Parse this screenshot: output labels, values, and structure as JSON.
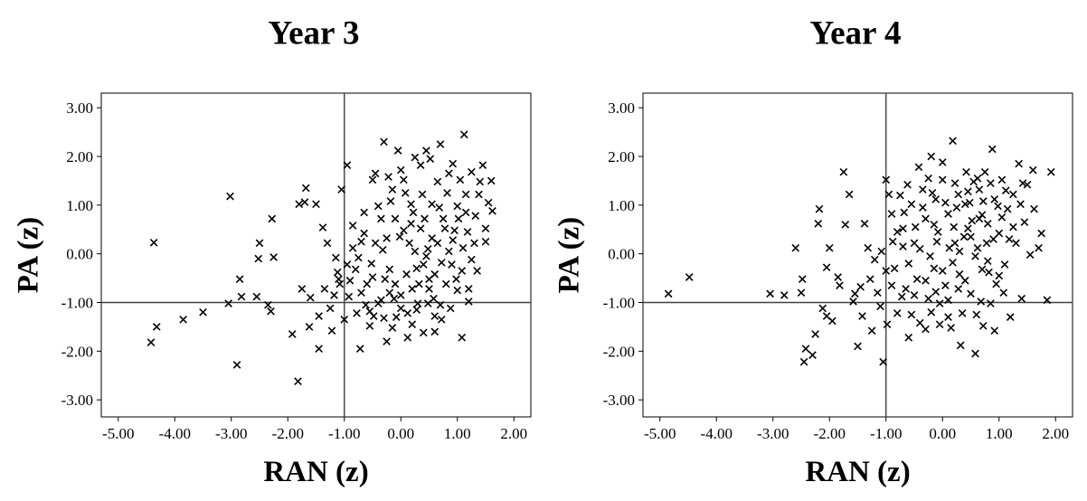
{
  "chart_data": [
    {
      "type": "scatter",
      "title": "Year 3",
      "xlabel": "RAN (z)",
      "ylabel": "PA (z)",
      "xlim": [
        -5.3,
        2.3
      ],
      "ylim": [
        -3.35,
        3.3
      ],
      "xticks": [
        -5,
        -4,
        -3,
        -2,
        -1,
        0,
        1,
        2
      ],
      "yticks": [
        3,
        2,
        1,
        0,
        -1,
        -2,
        -3
      ],
      "xtick_labels": [
        "-5.00",
        "-4.00",
        "-3.00",
        "-2.00",
        "-1.00",
        "0.00",
        "1.00",
        "2.00"
      ],
      "ytick_labels": [
        "3.00",
        "2.00",
        "1.00",
        "0.00",
        "-1.00",
        "-2.00",
        "-3.00"
      ],
      "reference_lines": {
        "x": -1,
        "y": -1
      },
      "marker": "x",
      "grid": false,
      "points": [
        [
          -4.42,
          -1.82
        ],
        [
          -4.37,
          0.23
        ],
        [
          -4.32,
          -1.5
        ],
        [
          -3.85,
          -1.35
        ],
        [
          -3.5,
          -1.2
        ],
        [
          -3.02,
          1.18
        ],
        [
          -3.05,
          -1.02
        ],
        [
          -2.85,
          -0.52
        ],
        [
          -2.82,
          -0.88
        ],
        [
          -2.9,
          -2.28
        ],
        [
          -2.5,
          0.22
        ],
        [
          -2.55,
          -0.88
        ],
        [
          -2.52,
          -0.1
        ],
        [
          -2.28,
          0.72
        ],
        [
          -2.35,
          -1.05
        ],
        [
          -2.3,
          -1.18
        ],
        [
          -2.25,
          -0.07
        ],
        [
          -1.92,
          -1.65
        ],
        [
          -1.8,
          1.02
        ],
        [
          -1.68,
          1.35
        ],
        [
          -1.7,
          1.06
        ],
        [
          -1.75,
          -0.72
        ],
        [
          -1.6,
          -0.9
        ],
        [
          -1.5,
          1.02
        ],
        [
          -1.45,
          -1.28
        ],
        [
          -1.38,
          0.54
        ],
        [
          -1.35,
          -0.72
        ],
        [
          -1.3,
          0.22
        ],
        [
          -1.25,
          -1.12
        ],
        [
          -1.18,
          -0.85
        ],
        [
          -1.12,
          -0.38
        ],
        [
          -1.05,
          1.32
        ],
        [
          -1.0,
          -1.35
        ],
        [
          -1.45,
          -1.95
        ],
        [
          -1.82,
          -2.62
        ],
        [
          -1.22,
          -1.58
        ],
        [
          -1.62,
          -1.5
        ],
        [
          -1.15,
          -0.08
        ],
        [
          -1.08,
          -0.62
        ],
        [
          -0.95,
          1.82
        ],
        [
          -0.92,
          -0.88
        ],
        [
          -0.85,
          0.58
        ],
        [
          -0.8,
          -0.32
        ],
        [
          -0.78,
          -1.22
        ],
        [
          -0.72,
          -1.95
        ],
        [
          -0.65,
          0.85
        ],
        [
          -0.55,
          -1.48
        ],
        [
          -0.3,
          2.3
        ],
        [
          -0.5,
          1.52
        ],
        [
          -0.45,
          1.65
        ],
        [
          -0.22,
          1.58
        ],
        [
          -0.15,
          1.32
        ],
        [
          -0.35,
          0.72
        ],
        [
          -0.28,
          -0.52
        ],
        [
          -0.12,
          -0.92
        ],
        [
          -0.05,
          2.12
        ],
        [
          0.0,
          1.72
        ],
        [
          0.05,
          1.52
        ],
        [
          0.12,
          -1.22
        ],
        [
          0.18,
          1.02
        ],
        [
          0.22,
          0.85
        ],
        [
          0.25,
          1.98
        ],
        [
          0.32,
          -0.62
        ],
        [
          0.35,
          1.82
        ],
        [
          0.45,
          2.12
        ],
        [
          0.5,
          -0.52
        ],
        [
          0.52,
          1.95
        ],
        [
          0.58,
          -0.92
        ],
        [
          0.65,
          1.48
        ],
        [
          0.7,
          2.25
        ],
        [
          0.72,
          -1.35
        ],
        [
          0.78,
          0.52
        ],
        [
          0.85,
          1.65
        ],
        [
          0.92,
          1.85
        ],
        [
          0.98,
          -0.52
        ],
        [
          1.0,
          0.98
        ],
        [
          1.05,
          1.52
        ],
        [
          1.08,
          -1.72
        ],
        [
          1.12,
          2.45
        ],
        [
          1.15,
          1.22
        ],
        [
          1.2,
          -0.72
        ],
        [
          1.25,
          1.68
        ],
        [
          1.3,
          0.22
        ],
        [
          1.35,
          -0.35
        ],
        [
          1.4,
          1.48
        ],
        [
          1.45,
          1.82
        ],
        [
          1.5,
          0.52
        ],
        [
          1.55,
          1.05
        ],
        [
          1.6,
          1.5
        ],
        [
          1.62,
          0.88
        ],
        [
          -0.2,
          -0.32
        ],
        [
          -0.1,
          -0.62
        ],
        [
          0.0,
          -0.85
        ],
        [
          0.1,
          -0.42
        ],
        [
          0.2,
          -0.72
        ],
        [
          0.3,
          -1.02
        ],
        [
          0.4,
          -0.22
        ],
        [
          0.5,
          -0.72
        ],
        [
          0.6,
          -0.42
        ],
        [
          0.7,
          -1.05
        ],
        [
          0.8,
          -0.62
        ],
        [
          0.9,
          -0.22
        ],
        [
          1.0,
          -0.75
        ],
        [
          -0.4,
          -1.02
        ],
        [
          -0.3,
          -1.32
        ],
        [
          -0.2,
          -0.8
        ],
        [
          0.0,
          -1.12
        ],
        [
          0.2,
          -1.45
        ],
        [
          0.4,
          -1.62
        ],
        [
          0.6,
          -1.28
        ],
        [
          -0.6,
          -0.62
        ],
        [
          -0.7,
          -0.8
        ],
        [
          -0.5,
          -0.48
        ],
        [
          -0.35,
          -0.95
        ],
        [
          0.15,
          0.22
        ],
        [
          0.35,
          0.52
        ],
        [
          0.55,
          0.32
        ],
        [
          0.75,
          0.72
        ],
        [
          0.95,
          0.48
        ],
        [
          1.1,
          0.12
        ],
        [
          0.05,
          0.48
        ],
        [
          0.25,
          0.05
        ],
        [
          0.45,
          -0.05
        ],
        [
          0.65,
          0.22
        ],
        [
          0.85,
          0.05
        ],
        [
          -0.1,
          0.72
        ],
        [
          -0.25,
          0.32
        ],
        [
          -0.45,
          0.22
        ],
        [
          -0.65,
          0.42
        ],
        [
          -0.85,
          0.12
        ],
        [
          -0.15,
          -1.52
        ],
        [
          0.12,
          -1.72
        ],
        [
          -0.55,
          -1.18
        ],
        [
          -0.9,
          -0.55
        ],
        [
          -0.25,
          -1.8
        ],
        [
          0.6,
          -1.6
        ],
        [
          1.2,
          -0.98
        ],
        [
          1.32,
          0.78
        ],
        [
          1.02,
          0.72
        ],
        [
          0.68,
          0.95
        ],
        [
          0.38,
          1.22
        ],
        [
          0.08,
          1.25
        ],
        [
          -0.18,
          1.08
        ],
        [
          -0.4,
          0.98
        ],
        [
          -0.7,
          0.25
        ],
        [
          -0.95,
          -0.22
        ],
        [
          -1.1,
          -0.52
        ],
        [
          0.28,
          -0.3
        ],
        [
          0.48,
          0.1
        ],
        [
          0.72,
          -0.18
        ],
        [
          0.92,
          0.28
        ],
        [
          1.18,
          0.45
        ],
        [
          1.38,
          1.22
        ],
        [
          1.5,
          0.25
        ],
        [
          1.25,
          -0.12
        ],
        [
          0.82,
          1.25
        ],
        [
          0.55,
          1.02
        ],
        [
          0.42,
          0.72
        ],
        [
          0.18,
          0.62
        ],
        [
          -0.02,
          0.35
        ],
        [
          -0.32,
          0.08
        ],
        [
          -0.52,
          -0.2
        ],
        [
          -0.75,
          -0.08
        ],
        [
          -0.62,
          -1.05
        ],
        [
          -0.48,
          -1.28
        ],
        [
          -0.08,
          -1.3
        ],
        [
          0.28,
          -1.15
        ],
        [
          0.48,
          -1.02
        ],
        [
          0.88,
          -1.12
        ],
        [
          1.08,
          -0.35
        ],
        [
          1.15,
          0.85
        ]
      ]
    },
    {
      "type": "scatter",
      "title": "Year 4",
      "xlabel": "RAN (z)",
      "ylabel": "PA (z)",
      "xlim": [
        -5.3,
        2.3
      ],
      "ylim": [
        -3.35,
        3.3
      ],
      "xticks": [
        -5,
        -4,
        -3,
        -2,
        -1,
        0,
        1,
        2
      ],
      "yticks": [
        3,
        2,
        1,
        0,
        -1,
        -2,
        -3
      ],
      "xtick_labels": [
        "-5.00",
        "-4.00",
        "-3.00",
        "-2.00",
        "-1.00",
        "0.00",
        "1.00",
        "2.00"
      ],
      "ytick_labels": [
        "3.00",
        "2.00",
        "1.00",
        "0.00",
        "-1.00",
        "-2.00",
        "-3.00"
      ],
      "reference_lines": {
        "x": -1,
        "y": -1
      },
      "marker": "x",
      "grid": false,
      "points": [
        [
          -4.85,
          -0.82
        ],
        [
          -4.48,
          -0.48
        ],
        [
          -3.05,
          -0.82
        ],
        [
          -2.8,
          -0.85
        ],
        [
          -2.6,
          0.12
        ],
        [
          -2.48,
          -0.52
        ],
        [
          -2.5,
          -0.8
        ],
        [
          -2.45,
          -2.22
        ],
        [
          -2.42,
          -1.95
        ],
        [
          -2.3,
          -2.08
        ],
        [
          -2.25,
          -1.65
        ],
        [
          -2.2,
          0.62
        ],
        [
          -2.18,
          0.92
        ],
        [
          -2.12,
          -1.12
        ],
        [
          -2.05,
          -0.28
        ],
        [
          -2.05,
          -1.28
        ],
        [
          -2.0,
          0.12
        ],
        [
          -1.95,
          -1.38
        ],
        [
          -1.85,
          -0.48
        ],
        [
          -1.82,
          -0.65
        ],
        [
          -1.75,
          1.68
        ],
        [
          -1.72,
          0.6
        ],
        [
          -1.65,
          1.22
        ],
        [
          -1.58,
          -0.98
        ],
        [
          -1.55,
          -0.82
        ],
        [
          -1.5,
          -1.9
        ],
        [
          -1.45,
          -0.68
        ],
        [
          -1.42,
          -1.28
        ],
        [
          -1.38,
          0.62
        ],
        [
          -1.32,
          0.12
        ],
        [
          -1.28,
          -0.52
        ],
        [
          -1.25,
          -1.58
        ],
        [
          -1.2,
          -0.12
        ],
        [
          -1.15,
          -0.8
        ],
        [
          -1.1,
          -1.08
        ],
        [
          -1.05,
          -2.22
        ],
        [
          -1.0,
          1.52
        ],
        [
          -0.98,
          -1.45
        ],
        [
          -0.95,
          1.22
        ],
        [
          -0.9,
          0.82
        ],
        [
          -0.85,
          -0.3
        ],
        [
          -0.8,
          -1.22
        ],
        [
          -0.75,
          1.2
        ],
        [
          -0.7,
          0.52
        ],
        [
          -0.65,
          -0.72
        ],
        [
          -0.6,
          -1.72
        ],
        [
          -0.55,
          1.02
        ],
        [
          -0.5,
          0.22
        ],
        [
          -0.45,
          -0.52
        ],
        [
          -0.42,
          1.78
        ],
        [
          -0.4,
          -1.42
        ],
        [
          -0.35,
          1.32
        ],
        [
          -0.3,
          0.72
        ],
        [
          -0.25,
          -0.92
        ],
        [
          -0.2,
          2.0
        ],
        [
          -0.15,
          -0.3
        ],
        [
          -0.12,
          1.12
        ],
        [
          -0.08,
          0.45
        ],
        [
          -0.05,
          -1.02
        ],
        [
          0.0,
          1.52
        ],
        [
          0.05,
          -0.65
        ],
        [
          0.1,
          0.82
        ],
        [
          0.15,
          -1.52
        ],
        [
          0.18,
          2.32
        ],
        [
          0.22,
          0.22
        ],
        [
          0.28,
          1.22
        ],
        [
          0.3,
          -0.42
        ],
        [
          0.35,
          -1.22
        ],
        [
          0.4,
          1.02
        ],
        [
          0.45,
          0.52
        ],
        [
          0.5,
          -0.82
        ],
        [
          0.55,
          1.48
        ],
        [
          0.58,
          -2.05
        ],
        [
          0.62,
          0.12
        ],
        [
          0.65,
          1.32
        ],
        [
          0.7,
          -0.32
        ],
        [
          0.75,
          1.68
        ],
        [
          0.8,
          0.62
        ],
        [
          0.85,
          -1.02
        ],
        [
          0.88,
          2.15
        ],
        [
          0.92,
          1.12
        ],
        [
          0.95,
          -0.62
        ],
        [
          1.0,
          0.42
        ],
        [
          1.05,
          1.52
        ],
        [
          1.1,
          -0.22
        ],
        [
          1.15,
          0.92
        ],
        [
          1.2,
          -1.3
        ],
        [
          1.25,
          1.22
        ],
        [
          1.3,
          0.22
        ],
        [
          1.35,
          1.85
        ],
        [
          1.4,
          -0.92
        ],
        [
          1.45,
          0.65
        ],
        [
          1.5,
          1.42
        ],
        [
          1.55,
          -0.02
        ],
        [
          1.6,
          1.72
        ],
        [
          1.62,
          0.92
        ],
        [
          1.7,
          0.12
        ],
        [
          1.75,
          0.42
        ],
        [
          1.85,
          -0.95
        ],
        [
          1.92,
          1.68
        ],
        [
          -0.6,
          -0.2
        ],
        [
          -0.5,
          -0.85
        ],
        [
          -0.4,
          0.1
        ],
        [
          -0.3,
          -0.55
        ],
        [
          -0.2,
          -1.2
        ],
        [
          -0.1,
          0.25
        ],
        [
          0.0,
          -0.35
        ],
        [
          0.1,
          -0.95
        ],
        [
          0.2,
          0.55
        ],
        [
          0.3,
          0.05
        ],
        [
          0.4,
          -0.55
        ],
        [
          0.5,
          0.35
        ],
        [
          0.6,
          -1.25
        ],
        [
          0.7,
          0.8
        ],
        [
          0.8,
          -0.15
        ],
        [
          0.9,
          0.3
        ],
        [
          1.0,
          -0.45
        ],
        [
          -0.7,
          0.15
        ],
        [
          -0.8,
          0.45
        ],
        [
          -0.9,
          -0.65
        ],
        [
          -1.0,
          -0.35
        ],
        [
          -0.35,
          0.95
        ],
        [
          -0.15,
          0.6
        ],
        [
          0.05,
          1.05
        ],
        [
          0.25,
          0.95
        ],
        [
          0.45,
          1.28
        ],
        [
          0.65,
          0.72
        ],
        [
          0.85,
          1.45
        ],
        [
          1.05,
          0.75
        ],
        [
          1.25,
          0.55
        ],
        [
          -0.55,
          -1.25
        ],
        [
          -0.3,
          -1.55
        ],
        [
          0.1,
          -1.3
        ],
        [
          0.32,
          -1.88
        ],
        [
          0.72,
          -1.48
        ],
        [
          0.92,
          -1.58
        ],
        [
          -0.25,
          1.55
        ],
        [
          0.0,
          1.88
        ],
        [
          0.42,
          1.68
        ],
        [
          0.62,
          1.55
        ],
        [
          -0.72,
          -0.88
        ],
        [
          -0.12,
          -0.78
        ],
        [
          0.18,
          -0.18
        ],
        [
          0.38,
          0.35
        ],
        [
          0.58,
          -0.05
        ],
        [
          0.78,
          0.22
        ],
        [
          0.98,
          0.98
        ],
        [
          1.18,
          0.3
        ],
        [
          1.38,
          1.02
        ],
        [
          -0.48,
          0.55
        ],
        [
          -0.68,
          0.85
        ],
        [
          -0.88,
          0.25
        ],
        [
          -1.08,
          0.05
        ],
        [
          -0.22,
          -0.05
        ],
        [
          0.12,
          0.12
        ],
        [
          0.52,
          0.68
        ],
        [
          0.82,
          -0.38
        ],
        [
          1.12,
          1.3
        ],
        [
          -0.05,
          -1.45
        ],
        [
          0.28,
          -0.72
        ],
        [
          0.68,
          -0.98
        ],
        [
          1.08,
          -0.8
        ],
        [
          -0.62,
          1.42
        ],
        [
          -0.18,
          1.25
        ],
        [
          0.22,
          1.45
        ],
        [
          0.48,
          1.05
        ],
        [
          0.72,
          1.08
        ],
        [
          1.42,
          1.45
        ]
      ]
    }
  ]
}
